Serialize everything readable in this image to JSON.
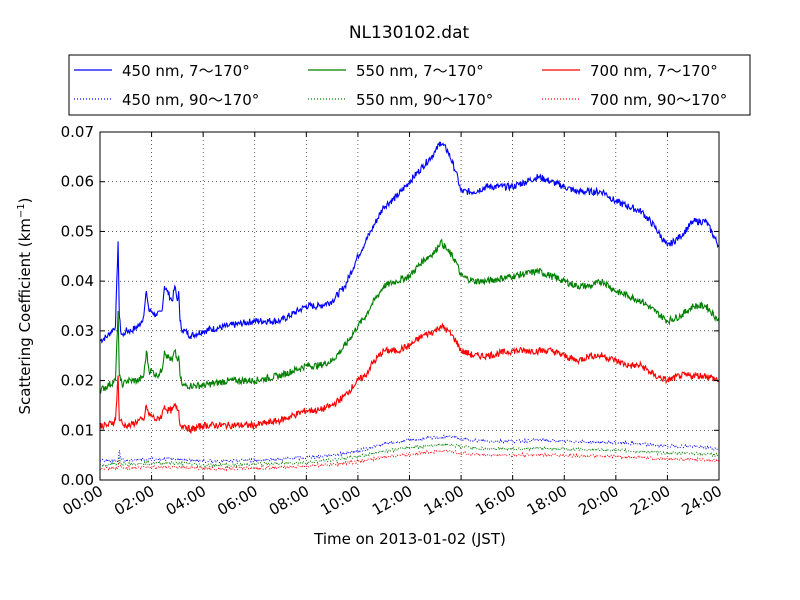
{
  "chart_data": {
    "type": "line",
    "title": "NL130102.dat",
    "xlabel": "Time on 2013-01-02 (JST)",
    "ylabel": "Scattering Coefficient (km",
    "ylabel_sup": "−1",
    "ylabel_end": ")",
    "xlim": [
      0,
      24
    ],
    "ylim": [
      0,
      0.07
    ],
    "grid": true,
    "legend_position": "top, above plot",
    "x_tick_labels": [
      "00:00",
      "02:00",
      "04:00",
      "06:00",
      "08:00",
      "10:00",
      "12:00",
      "14:00",
      "16:00",
      "18:00",
      "20:00",
      "22:00",
      "24:00"
    ],
    "y_tick_labels": [
      "0.00",
      "0.01",
      "0.02",
      "0.03",
      "0.04",
      "0.05",
      "0.06",
      "0.07"
    ],
    "series": [
      {
        "name": "450 nm, 7～170°",
        "color": "#0000ff",
        "style": "solid",
        "x": [
          0,
          0.3,
          0.6,
          0.7,
          0.75,
          0.8,
          0.9,
          1.0,
          1.2,
          1.5,
          1.7,
          1.8,
          1.9,
          2.0,
          2.2,
          2.4,
          2.5,
          2.6,
          2.8,
          2.9,
          3.0,
          3.05,
          3.1,
          3.2,
          3.3,
          3.5,
          4,
          5,
          6,
          7,
          8,
          8.5,
          9,
          9.5,
          10,
          10.3,
          10.5,
          11,
          11.5,
          12,
          12.5,
          13,
          13.2,
          13.5,
          13.8,
          14,
          14.5,
          15,
          16,
          17,
          17.5,
          18,
          18.5,
          19,
          19.5,
          20,
          20.5,
          21,
          21.5,
          22,
          22.5,
          23,
          23.5,
          24
        ],
        "y": [
          0.028,
          0.029,
          0.031,
          0.048,
          0.033,
          0.03,
          0.029,
          0.03,
          0.03,
          0.031,
          0.033,
          0.038,
          0.034,
          0.034,
          0.033,
          0.034,
          0.039,
          0.038,
          0.036,
          0.039,
          0.036,
          0.038,
          0.032,
          0.03,
          0.03,
          0.029,
          0.03,
          0.031,
          0.032,
          0.032,
          0.035,
          0.035,
          0.036,
          0.039,
          0.045,
          0.048,
          0.05,
          0.055,
          0.057,
          0.06,
          0.063,
          0.066,
          0.068,
          0.066,
          0.062,
          0.058,
          0.058,
          0.059,
          0.059,
          0.061,
          0.06,
          0.059,
          0.058,
          0.058,
          0.058,
          0.056,
          0.055,
          0.054,
          0.051,
          0.047,
          0.049,
          0.052,
          0.052,
          0.047
        ]
      },
      {
        "name": "550 nm, 7～170°",
        "color": "#008000",
        "style": "solid",
        "x": [
          0,
          0.3,
          0.6,
          0.7,
          0.75,
          0.8,
          0.9,
          1.0,
          1.2,
          1.5,
          1.7,
          1.8,
          1.9,
          2.0,
          2.2,
          2.4,
          2.5,
          2.6,
          2.8,
          2.9,
          3.0,
          3.05,
          3.1,
          3.2,
          3.3,
          3.5,
          4,
          5,
          6,
          7,
          8,
          8.5,
          9,
          9.5,
          10,
          10.3,
          10.5,
          11,
          11.5,
          12,
          12.5,
          13,
          13.2,
          13.5,
          13.8,
          14,
          14.5,
          15,
          16,
          17,
          17.5,
          18,
          18.5,
          19,
          19.5,
          20,
          20.5,
          21,
          21.5,
          22,
          22.5,
          23,
          23.5,
          24
        ],
        "y": [
          0.018,
          0.019,
          0.02,
          0.034,
          0.021,
          0.02,
          0.019,
          0.02,
          0.02,
          0.02,
          0.021,
          0.026,
          0.022,
          0.022,
          0.021,
          0.022,
          0.026,
          0.025,
          0.024,
          0.026,
          0.024,
          0.025,
          0.021,
          0.019,
          0.019,
          0.019,
          0.019,
          0.02,
          0.02,
          0.021,
          0.023,
          0.023,
          0.024,
          0.027,
          0.031,
          0.033,
          0.035,
          0.039,
          0.04,
          0.041,
          0.044,
          0.046,
          0.048,
          0.046,
          0.044,
          0.041,
          0.04,
          0.04,
          0.041,
          0.042,
          0.041,
          0.04,
          0.039,
          0.039,
          0.04,
          0.038,
          0.037,
          0.036,
          0.034,
          0.032,
          0.033,
          0.035,
          0.035,
          0.032
        ]
      },
      {
        "name": "700 nm, 7～170°",
        "color": "#ff0000",
        "style": "solid",
        "x": [
          0,
          0.3,
          0.6,
          0.7,
          0.75,
          0.8,
          0.9,
          1.0,
          1.2,
          1.5,
          1.7,
          1.8,
          1.9,
          2.0,
          2.2,
          2.4,
          2.5,
          2.6,
          2.8,
          2.9,
          3.0,
          3.05,
          3.1,
          3.2,
          3.3,
          3.5,
          4,
          5,
          6,
          7,
          8,
          8.5,
          9,
          9.5,
          10,
          10.3,
          10.5,
          11,
          11.5,
          12,
          12.5,
          13,
          13.2,
          13.5,
          13.8,
          14,
          14.5,
          15,
          16,
          17,
          17.5,
          18,
          18.5,
          19,
          19.5,
          20,
          20.5,
          21,
          21.5,
          22,
          22.5,
          23,
          23.5,
          24
        ],
        "y": [
          0.011,
          0.011,
          0.012,
          0.021,
          0.012,
          0.012,
          0.011,
          0.011,
          0.011,
          0.012,
          0.012,
          0.015,
          0.013,
          0.013,
          0.012,
          0.013,
          0.015,
          0.014,
          0.014,
          0.015,
          0.014,
          0.014,
          0.011,
          0.011,
          0.011,
          0.01,
          0.011,
          0.011,
          0.011,
          0.012,
          0.014,
          0.014,
          0.015,
          0.017,
          0.02,
          0.021,
          0.023,
          0.026,
          0.026,
          0.027,
          0.029,
          0.03,
          0.031,
          0.03,
          0.028,
          0.026,
          0.025,
          0.025,
          0.026,
          0.026,
          0.026,
          0.025,
          0.024,
          0.025,
          0.025,
          0.024,
          0.023,
          0.023,
          0.021,
          0.02,
          0.021,
          0.021,
          0.021,
          0.02
        ]
      },
      {
        "name": "450 nm, 90～170°",
        "color": "#0000ff",
        "style": "dotted",
        "x": [
          0,
          0.7,
          0.75,
          0.8,
          1,
          2,
          3,
          4,
          5,
          6,
          7,
          8,
          9,
          10,
          11,
          12,
          13,
          13.5,
          14,
          15,
          16,
          17,
          18,
          19,
          20,
          21,
          22,
          23,
          24
        ],
        "y": [
          0.0038,
          0.004,
          0.006,
          0.0042,
          0.004,
          0.0042,
          0.0042,
          0.0038,
          0.0038,
          0.004,
          0.0042,
          0.0045,
          0.005,
          0.0058,
          0.0072,
          0.008,
          0.0085,
          0.0088,
          0.0082,
          0.0078,
          0.0078,
          0.008,
          0.0078,
          0.0076,
          0.0075,
          0.0072,
          0.0068,
          0.0068,
          0.0062
        ]
      },
      {
        "name": "550 nm, 90～170°",
        "color": "#008000",
        "style": "dotted",
        "x": [
          0,
          0.7,
          0.75,
          0.8,
          1,
          2,
          3,
          4,
          5,
          6,
          7,
          8,
          9,
          10,
          11,
          12,
          13,
          13.5,
          14,
          15,
          16,
          17,
          18,
          19,
          20,
          21,
          22,
          23,
          24
        ],
        "y": [
          0.003,
          0.0032,
          0.005,
          0.0034,
          0.0032,
          0.0034,
          0.0034,
          0.003,
          0.003,
          0.0032,
          0.0033,
          0.0036,
          0.004,
          0.0047,
          0.0058,
          0.0065,
          0.007,
          0.0072,
          0.0067,
          0.0063,
          0.0063,
          0.0064,
          0.0062,
          0.0061,
          0.006,
          0.0057,
          0.0054,
          0.0054,
          0.005
        ]
      },
      {
        "name": "700 nm, 90～170°",
        "color": "#ff0000",
        "style": "dotted",
        "x": [
          0,
          0.7,
          0.75,
          0.8,
          1,
          2,
          3,
          4,
          5,
          6,
          7,
          8,
          9,
          10,
          11,
          12,
          13,
          13.5,
          14,
          15,
          16,
          17,
          18,
          19,
          20,
          21,
          22,
          23,
          24
        ],
        "y": [
          0.0022,
          0.0024,
          0.004,
          0.0026,
          0.0024,
          0.0026,
          0.0026,
          0.0023,
          0.0023,
          0.0024,
          0.0025,
          0.0028,
          0.0031,
          0.0037,
          0.0046,
          0.0052,
          0.0057,
          0.0058,
          0.0054,
          0.005,
          0.005,
          0.0051,
          0.0049,
          0.0048,
          0.0047,
          0.0045,
          0.0042,
          0.0042,
          0.0039
        ]
      }
    ]
  }
}
